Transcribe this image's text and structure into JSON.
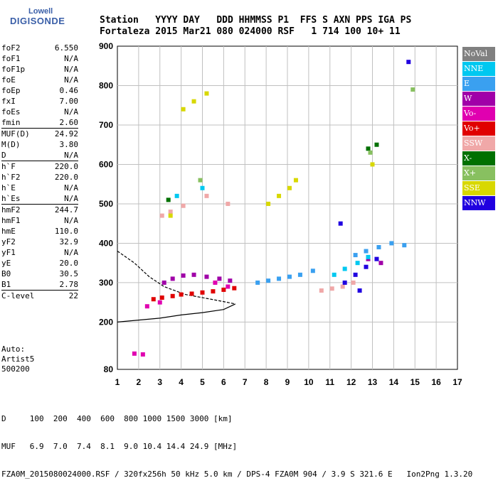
{
  "logo": {
    "top": "Lowell",
    "main": "DIGISONDE"
  },
  "header": {
    "labels": "Station   YYYY DAY   DDD HHMMSS P1  FFS S AXN PPS IGA PS",
    "values": "Fortaleza 2015 Mar21 080 024000 RSF   1 714 100 10+ 11"
  },
  "params": [
    {
      "name": "foF2",
      "value": "6.550"
    },
    {
      "name": "foF1",
      "value": "N/A"
    },
    {
      "name": "foF1p",
      "value": "N/A"
    },
    {
      "name": "foE",
      "value": "N/A"
    },
    {
      "name": "foEp",
      "value": "0.46"
    },
    {
      "name": "fxI",
      "value": "7.00"
    },
    {
      "name": "foEs",
      "value": "N/A"
    },
    {
      "name": "fmin",
      "value": "2.60"
    },
    {
      "name": "MUF(D)",
      "value": "24.92"
    },
    {
      "name": "M(D)",
      "value": "3.80"
    },
    {
      "name": "D",
      "value": "N/A"
    },
    {
      "name": "h`F",
      "value": "220.0"
    },
    {
      "name": "h`F2",
      "value": "220.0"
    },
    {
      "name": "h`E",
      "value": "N/A"
    },
    {
      "name": "h`Es",
      "value": "N/A"
    },
    {
      "name": "hmF2",
      "value": "244.7"
    },
    {
      "name": "hmF1",
      "value": "N/A"
    },
    {
      "name": "hmE",
      "value": "110.0"
    },
    {
      "name": "yF2",
      "value": "32.9"
    },
    {
      "name": "yF1",
      "value": "N/A"
    },
    {
      "name": "yE",
      "value": "20.0"
    },
    {
      "name": "B0",
      "value": "30.5"
    },
    {
      "name": "B1",
      "value": "2.78"
    },
    {
      "name": "C-level",
      "value": "22"
    }
  ],
  "auto": {
    "line1": "Auto:",
    "line2": "Artist5",
    "line3": "500200"
  },
  "legend": [
    {
      "label": "NoVal",
      "color": "#808080"
    },
    {
      "label": "NNE",
      "color": "#00c8f0"
    },
    {
      "label": "E",
      "color": "#3aa0f0"
    },
    {
      "label": "W",
      "color": "#a000a8"
    },
    {
      "label": "Vo-",
      "color": "#e000b0"
    },
    {
      "label": "Vo+",
      "color": "#e00000"
    },
    {
      "label": "SSW",
      "color": "#f0a8a8"
    },
    {
      "label": "X-",
      "color": "#007000"
    },
    {
      "label": "X+",
      "color": "#88c060"
    },
    {
      "label": "SSE",
      "color": "#d8d800"
    },
    {
      "label": "NNW",
      "color": "#2000e0"
    }
  ],
  "footer": {
    "line1": "D     100  200  400  600  800 1000 1500 3000 [km]",
    "line2": "MUF   6.9  7.0  7.4  8.1  9.0 10.4 14.4 24.9 [MHz]",
    "line3": "FZA0M_2015080024000.RSF / 320fx256h 50 kHz 5.0 km / DPS-4 FZA0M 904 / 3.9 S 321.6 E   Ion2Png 1.3.20"
  },
  "chart_data": {
    "type": "scatter",
    "title": "",
    "xlabel": "",
    "ylabel": "",
    "xlim": [
      1,
      17
    ],
    "ylim": [
      80,
      900
    ],
    "xticks": [
      1,
      2,
      3,
      4,
      5,
      6,
      7,
      8,
      9,
      10,
      11,
      12,
      13,
      14,
      15,
      16,
      17
    ],
    "yticks": [
      80,
      200,
      300,
      400,
      500,
      600,
      700,
      800,
      900
    ],
    "grid": true,
    "series": [
      {
        "name": "Vo+",
        "color": "#e00000",
        "points": [
          [
            2.7,
            258
          ],
          [
            3.1,
            262
          ],
          [
            3.6,
            266
          ],
          [
            4.0,
            270
          ],
          [
            4.5,
            272
          ],
          [
            5.0,
            275
          ],
          [
            5.5,
            278
          ],
          [
            6.0,
            282
          ],
          [
            6.5,
            286
          ]
        ]
      },
      {
        "name": "W",
        "color": "#a000a8",
        "points": [
          [
            3.2,
            300
          ],
          [
            3.6,
            310
          ],
          [
            4.1,
            318
          ],
          [
            4.6,
            320
          ],
          [
            5.2,
            315
          ],
          [
            5.8,
            310
          ],
          [
            6.3,
            305
          ],
          [
            12.8,
            360
          ],
          [
            13.4,
            350
          ]
        ]
      },
      {
        "name": "E",
        "color": "#3aa0f0",
        "points": [
          [
            7.6,
            300
          ],
          [
            8.1,
            305
          ],
          [
            8.6,
            310
          ],
          [
            9.1,
            315
          ],
          [
            9.6,
            320
          ],
          [
            10.2,
            330
          ],
          [
            12.2,
            370
          ],
          [
            12.7,
            380
          ],
          [
            13.3,
            390
          ],
          [
            13.9,
            400
          ],
          [
            14.5,
            395
          ]
        ]
      },
      {
        "name": "SSW",
        "color": "#f0a8a8",
        "points": [
          [
            10.6,
            280
          ],
          [
            11.1,
            285
          ],
          [
            11.6,
            290
          ],
          [
            12.1,
            300
          ],
          [
            3.1,
            470
          ],
          [
            3.5,
            480
          ],
          [
            4.1,
            495
          ],
          [
            5.2,
            520
          ],
          [
            6.2,
            500
          ]
        ]
      },
      {
        "name": "SSE",
        "color": "#d8d800",
        "points": [
          [
            8.1,
            500
          ],
          [
            8.6,
            520
          ],
          [
            9.1,
            540
          ],
          [
            9.4,
            560
          ],
          [
            3.5,
            470
          ],
          [
            4.1,
            740
          ],
          [
            4.6,
            760
          ],
          [
            5.2,
            780
          ],
          [
            13.0,
            600
          ]
        ]
      },
      {
        "name": "NNW",
        "color": "#2000e0",
        "points": [
          [
            11.7,
            300
          ],
          [
            12.2,
            320
          ],
          [
            12.7,
            340
          ],
          [
            13.2,
            360
          ],
          [
            14.7,
            860
          ],
          [
            11.5,
            450
          ],
          [
            12.4,
            280
          ]
        ]
      },
      {
        "name": "NNE",
        "color": "#00c8f0",
        "points": [
          [
            11.2,
            320
          ],
          [
            11.7,
            335
          ],
          [
            12.3,
            350
          ],
          [
            12.8,
            365
          ],
          [
            3.8,
            520
          ],
          [
            5.0,
            540
          ]
        ]
      },
      {
        "name": "Vo-",
        "color": "#e000b0",
        "points": [
          [
            1.8,
            120
          ],
          [
            2.2,
            118
          ],
          [
            2.4,
            240
          ],
          [
            3.0,
            250
          ],
          [
            5.6,
            300
          ],
          [
            6.2,
            290
          ]
        ]
      },
      {
        "name": "X-",
        "color": "#007000",
        "points": [
          [
            12.8,
            640
          ],
          [
            13.2,
            650
          ],
          [
            3.4,
            510
          ]
        ]
      },
      {
        "name": "X+",
        "color": "#88c060",
        "points": [
          [
            12.9,
            630
          ],
          [
            14.9,
            790
          ],
          [
            4.9,
            560
          ]
        ]
      }
    ]
  }
}
